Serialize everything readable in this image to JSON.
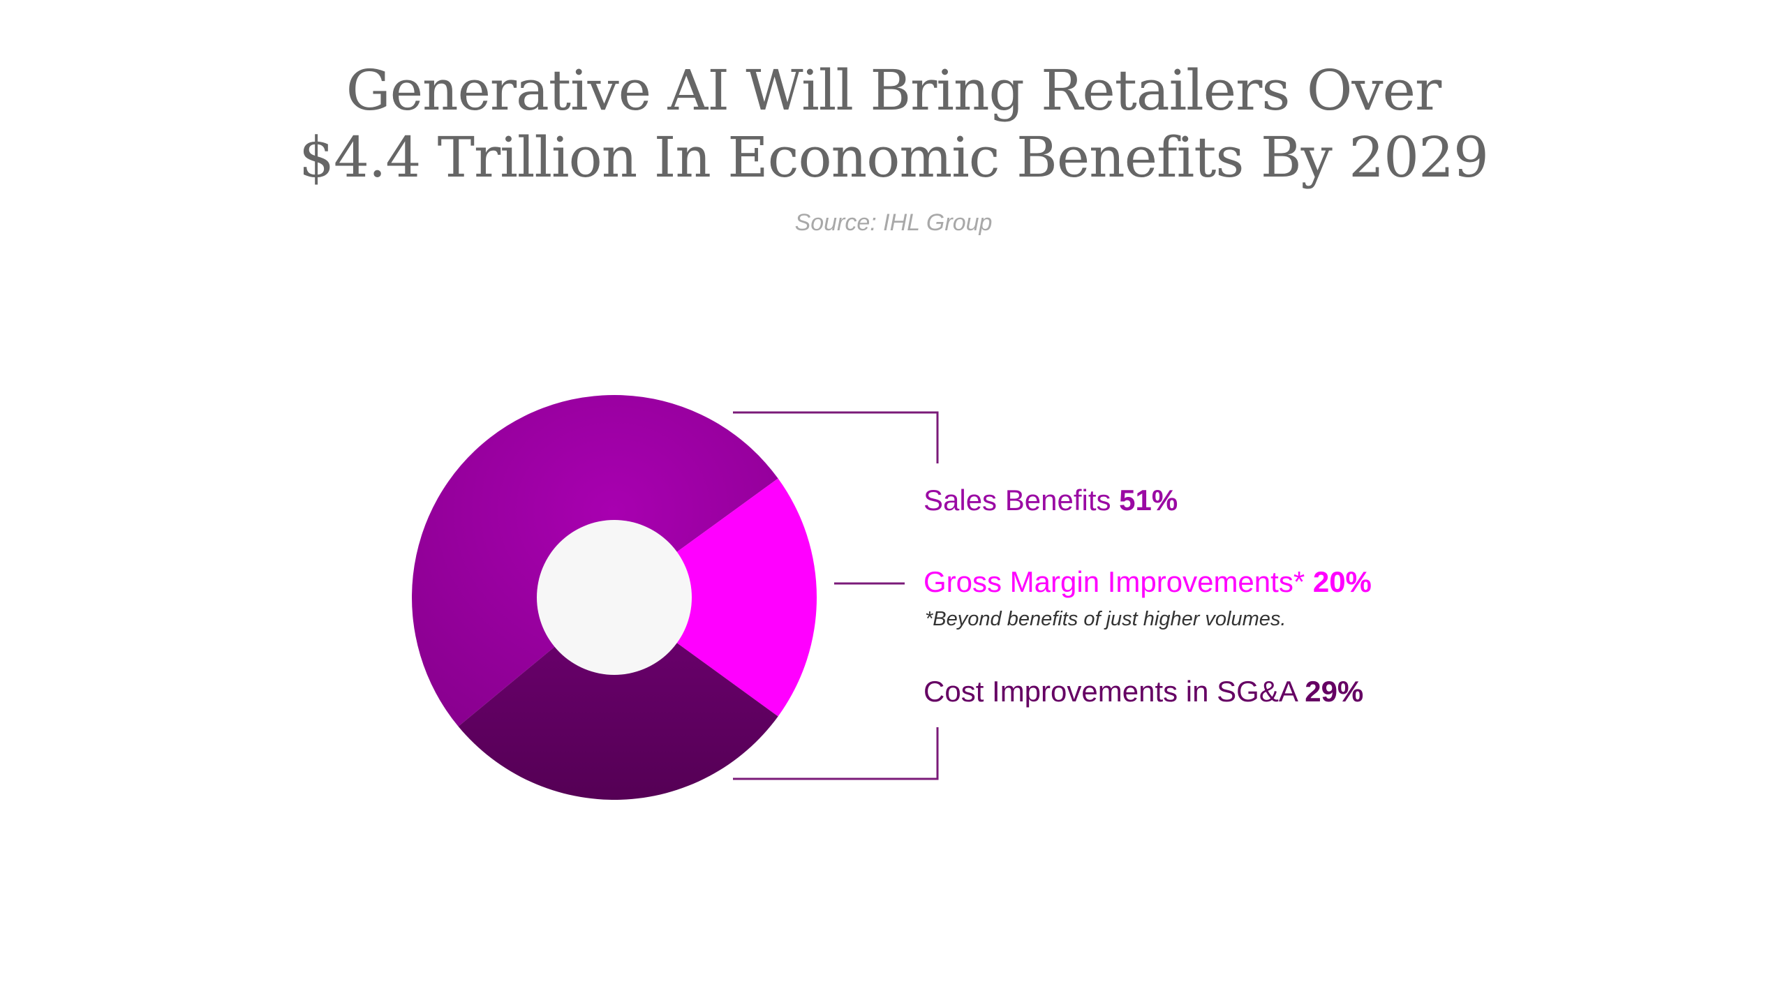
{
  "title": {
    "line1": "Generative AI Will Bring Retailers Over",
    "line2": "$4.4 Trillion In Economic Benefits By 2029"
  },
  "source": "Source: IHL Group",
  "colors": {
    "sales": "#9a0aa3",
    "gross_margin": "#ff00ff",
    "cost": "#650063",
    "hole": "#f7f7f7",
    "title": "#666666"
  },
  "chart_data": {
    "type": "pie",
    "title": "Generative AI Will Bring Retailers Over $4.4 Trillion In Economic Benefits By 2029",
    "subtitle": "Source: IHL Group",
    "legend_placement": "right",
    "categories": [
      "Sales Benefits",
      "Gross Margin Improvements*",
      "Cost Improvements in SG&A"
    ],
    "values": [
      51,
      20,
      29
    ],
    "value_labels": [
      "51%",
      "20%",
      "29%"
    ],
    "annotations": [
      "*Beyond benefits of just higher volumes."
    ]
  },
  "legend": {
    "sales_label": "Sales Benefits",
    "sales_pct": "51%",
    "gross_label": "Gross Margin Improvements*",
    "gross_pct": "20%",
    "gross_footnote": "*Beyond benefits of just higher volumes.",
    "cost_label": "Cost Improvements in SG&A",
    "cost_pct": "29%"
  }
}
